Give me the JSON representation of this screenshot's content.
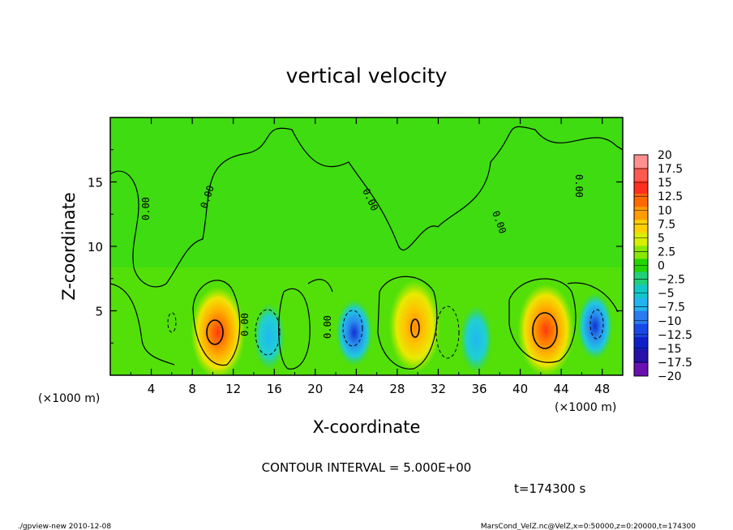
{
  "chart_data": {
    "type": "heatmap",
    "title": "vertical velocity",
    "xlabel": "X-coordinate",
    "ylabel": "Z-coordinate",
    "x_unit_label": "(×1000 m)",
    "x_unit_label_right": "(×1000 m)",
    "xlim": [
      0,
      50
    ],
    "ylim": [
      0,
      20
    ],
    "xticks": [
      "4",
      "8",
      "12",
      "16",
      "20",
      "24",
      "28",
      "32",
      "36",
      "40",
      "44",
      "48"
    ],
    "yticks": [
      "5",
      "10",
      "15"
    ],
    "contour_labels": [
      "0.00",
      "0.00",
      "0.00",
      "0.00",
      "0.00",
      "0.00",
      "0.00"
    ],
    "contour_interval_text": "CONTOUR INTERVAL = 5.000E+00",
    "time_text": "t=174300 s",
    "colorbar": {
      "levels": [
        "20",
        "17.5",
        "15",
        "12.5",
        "10",
        "7.5",
        "5",
        "2.5",
        "0",
        "−2.5",
        "−5",
        "−7.5",
        "−10",
        "−12.5",
        "−15",
        "−17.5",
        "−20"
      ],
      "colors": [
        "#ff9090",
        "#ff5a50",
        "#ff3020",
        "#ff6a00",
        "#ff9c00",
        "#ffd000",
        "#d6f000",
        "#88e800",
        "#22d400",
        "#22d07a",
        "#11c8c8",
        "#22b4f0",
        "#2a7af0",
        "#1848e8",
        "#1020c8",
        "#2810a8",
        "#6a10b0"
      ]
    },
    "features": [
      {
        "kind": "updraft",
        "x": 10.5,
        "z": 3.3,
        "peak": 12
      },
      {
        "kind": "downdraft",
        "x": 15.5,
        "z": 3,
        "peak": -6
      },
      {
        "kind": "downdraft",
        "x": 23.8,
        "z": 3.3,
        "peak": -13
      },
      {
        "kind": "updraft",
        "x": 29.7,
        "z": 3.8,
        "peak": 10
      },
      {
        "kind": "downdraft",
        "x": 35.7,
        "z": 2.8,
        "peak": -7
      },
      {
        "kind": "updraft",
        "x": 42.5,
        "z": 3.5,
        "peak": 14
      },
      {
        "kind": "downdraft",
        "x": 47.3,
        "z": 3.8,
        "peak": -11
      }
    ]
  },
  "footer": {
    "left": "./gpview-new  2010-12-08",
    "right": "MarsCond_VelZ.nc@VelZ,x=0:50000,z=0:20000,t=174300"
  }
}
